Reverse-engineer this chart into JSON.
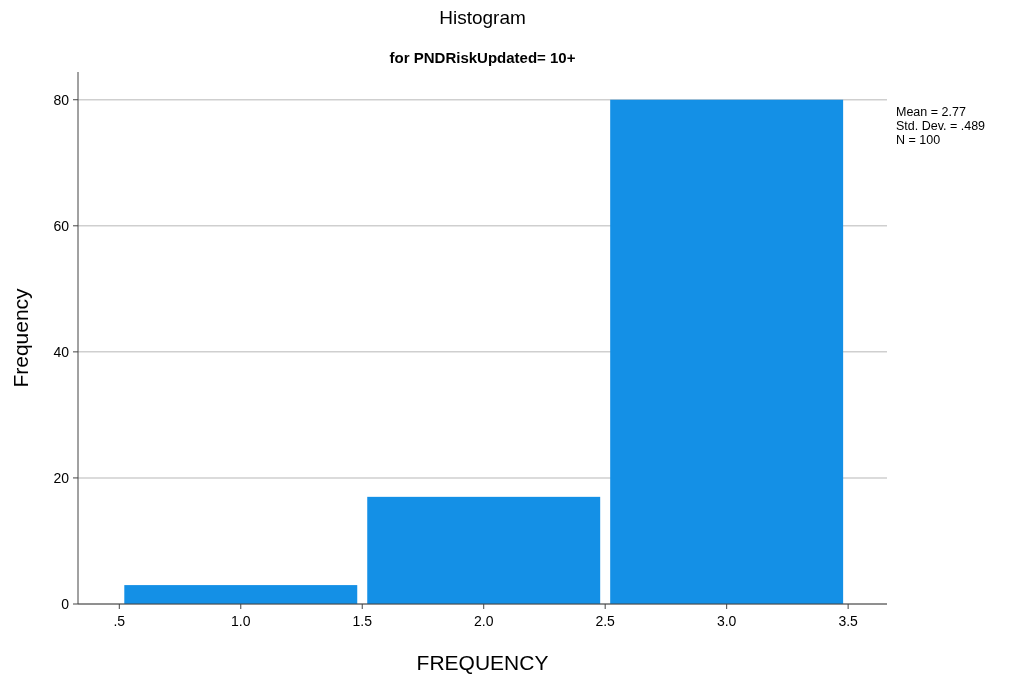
{
  "chart_data": {
    "type": "histogram",
    "title": "Histogram",
    "subtitle": "for PNDRiskUpdated= 10+",
    "xlabel": "FREQUENCY",
    "ylabel": "Frequency",
    "bins": [
      0.5,
      1.5,
      2.5,
      3.5
    ],
    "values": [
      3,
      17,
      80
    ],
    "color": "#1490e6",
    "xlim": [
      0.33,
      3.66
    ],
    "xticks": [
      {
        "value": 0.5,
        "label": ".5"
      },
      {
        "value": 1,
        "label": "1.0"
      },
      1.5,
      {
        "value": 2,
        "label": "2.0"
      },
      2.5,
      {
        "value": 3,
        "label": "3.0"
      },
      3.5
    ],
    "ylim": [
      0,
      84.4
    ],
    "yticks": [
      0,
      20,
      40,
      60,
      80
    ],
    "grid": "y",
    "annotations": [
      "Mean = 2.77",
      "Std. Dev. = .489",
      "N = 100"
    ]
  }
}
